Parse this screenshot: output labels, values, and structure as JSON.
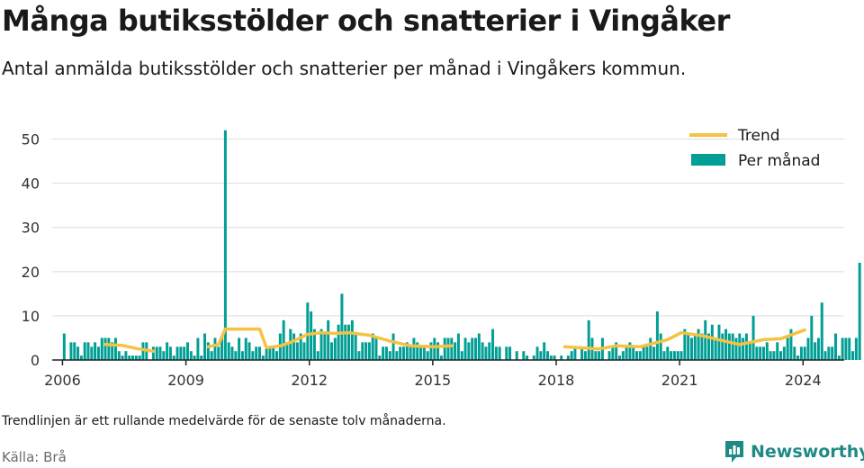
{
  "title": "Många butiksstölder och snatterier i Vingåker",
  "subtitle": "Antal anmälda butiksstölder och snatterier per månad i Vingåkers kommun.",
  "note": "Trendlinjen är ett rullande medelvärde för de senaste tolv månaderna.",
  "source": "Källa: Brå",
  "brand": "Newsworthy",
  "colors": {
    "bars": "#009e94",
    "trend": "#f5c242",
    "grid": "#dddddd",
    "axis": "#222222",
    "brand": "#1f8a84"
  },
  "chart_data": {
    "type": "bar",
    "x_start": "2006-01",
    "xlim": [
      "2005-10",
      "2025-01"
    ],
    "ylim": [
      0,
      55
    ],
    "y_ticks": [
      0,
      10,
      20,
      30,
      40,
      50
    ],
    "x_ticks": [
      "2006",
      "2009",
      "2012",
      "2015",
      "2018",
      "2021",
      "2024"
    ],
    "legend": {
      "position": "top-right",
      "trend_label": "Trend",
      "bars_label": "Per månad"
    },
    "series": [
      {
        "name": "Per månad",
        "type": "bar",
        "values": [
          6,
          0,
          4,
          4,
          3,
          1,
          4,
          4,
          3,
          4,
          3,
          5,
          5,
          5,
          4,
          5,
          2,
          1,
          2,
          1,
          1,
          1,
          1,
          4,
          4,
          0,
          3,
          3,
          3,
          2,
          4,
          3,
          1,
          3,
          3,
          3,
          4,
          2,
          1,
          5,
          1,
          6,
          4,
          2,
          5,
          3,
          5,
          52,
          4,
          3,
          2,
          5,
          2,
          5,
          4,
          2,
          3,
          3,
          1,
          3,
          3,
          3,
          2,
          6,
          9,
          4,
          7,
          6,
          4,
          6,
          4,
          13,
          11,
          7,
          2,
          7,
          6,
          9,
          4,
          5,
          8,
          15,
          8,
          8,
          9,
          6,
          2,
          4,
          4,
          4,
          6,
          5,
          1,
          3,
          3,
          2,
          6,
          2,
          3,
          3,
          4,
          3,
          5,
          4,
          3,
          3,
          2,
          4,
          5,
          4,
          1,
          5,
          5,
          5,
          4,
          6,
          2,
          5,
          4,
          5,
          5,
          6,
          4,
          3,
          4,
          7,
          3,
          3,
          0,
          3,
          3,
          0,
          2,
          0,
          2,
          1,
          0,
          1,
          3,
          2,
          4,
          2,
          1,
          1,
          0,
          1,
          0,
          1,
          2,
          3,
          0,
          3,
          2,
          9,
          5,
          2,
          2,
          5,
          0,
          2,
          3,
          4,
          1,
          2,
          3,
          4,
          3,
          2,
          2,
          3,
          3,
          5,
          3,
          11,
          6,
          2,
          3,
          2,
          2,
          2,
          2,
          7,
          6,
          5,
          6,
          7,
          6,
          9,
          6,
          8,
          5,
          8,
          6,
          7,
          6,
          6,
          5,
          6,
          5,
          6,
          4,
          10,
          3,
          3,
          3,
          4,
          2,
          2,
          4,
          2,
          3,
          5,
          7,
          3,
          1,
          3,
          3,
          5,
          10,
          4,
          5,
          13,
          2,
          3,
          3,
          6,
          1,
          5,
          5,
          5,
          2,
          5,
          22
        ]
      },
      {
        "name": "Trend",
        "type": "line",
        "points": [
          [
            "2007-01",
            3.5
          ],
          [
            "2007-06",
            3.3
          ],
          [
            "2007-10",
            2.6
          ],
          [
            "2008-03",
            2.0
          ],
          [
            "2009-07",
            3.0
          ],
          [
            "2009-10",
            3.5
          ],
          [
            "2009-12",
            7.0
          ],
          [
            "2010-06",
            7.0
          ],
          [
            "2010-10",
            7.0
          ],
          [
            "2010-12",
            2.8
          ],
          [
            "2011-04",
            3.2
          ],
          [
            "2011-07",
            4.0
          ],
          [
            "2011-12",
            5.8
          ],
          [
            "2012-04",
            6.2
          ],
          [
            "2012-08",
            6.0
          ],
          [
            "2012-12",
            6.2
          ],
          [
            "2013-06",
            5.6
          ],
          [
            "2013-12",
            4.3
          ],
          [
            "2014-06",
            3.2
          ],
          [
            "2015-01",
            3.0
          ],
          [
            "2015-06",
            3.2
          ],
          [
            "2018-03",
            3.0
          ],
          [
            "2019-01",
            2.5
          ],
          [
            "2019-06",
            3.2
          ],
          [
            "2020-01",
            3.0
          ],
          [
            "2020-04",
            3.6
          ],
          [
            "2020-09",
            4.6
          ],
          [
            "2021-01",
            6.2
          ],
          [
            "2021-07",
            5.5
          ],
          [
            "2022-01",
            4.4
          ],
          [
            "2022-06",
            3.5
          ],
          [
            "2022-09",
            4.0
          ],
          [
            "2023-01",
            4.6
          ],
          [
            "2023-06",
            4.8
          ],
          [
            "2024-01",
            6.8
          ]
        ]
      }
    ]
  }
}
